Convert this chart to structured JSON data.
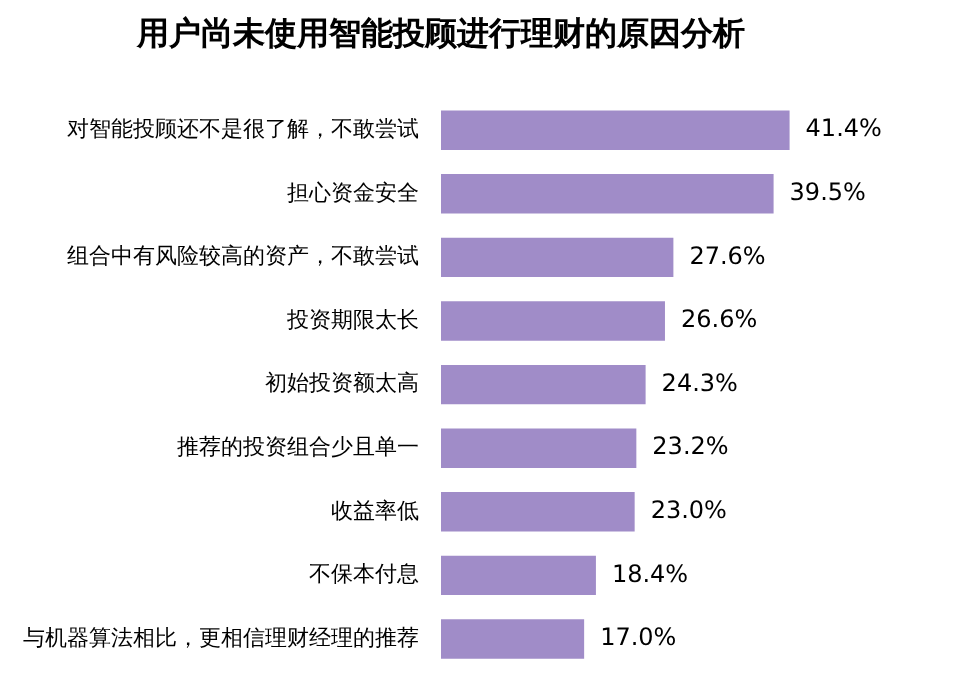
{
  "chart_data": {
    "type": "bar",
    "orientation": "horizontal",
    "title": "用户尚未使用智能投顾进行理财的原因分析",
    "categories": [
      "对智能投顾还不是很了解，不敢尝试",
      "担心资金安全",
      "组合中有风险较高的资产，不敢尝试",
      "投资期限太长",
      "初始投资额太高",
      "推荐的投资组合少且单一",
      "收益率低",
      "不保本付息",
      "与机器算法相比，更相信理财经理的推荐"
    ],
    "values": [
      41.4,
      39.5,
      27.6,
      26.6,
      24.3,
      23.2,
      23.0,
      18.4,
      17.0
    ],
    "value_labels": [
      "41.4%",
      "39.5%",
      "27.6%",
      "26.6%",
      "24.3%",
      "23.2%",
      "23.0%",
      "18.4%",
      "17.0%"
    ],
    "color": "#a08cc8"
  }
}
